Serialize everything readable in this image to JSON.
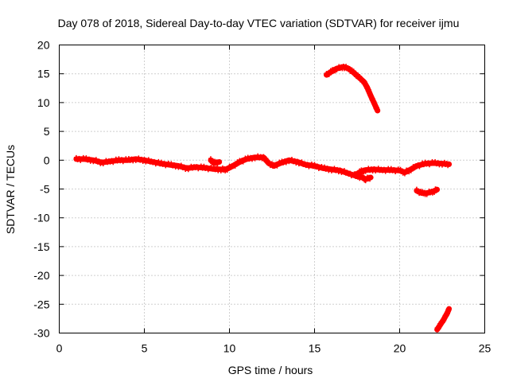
{
  "chart_data": {
    "type": "scatter",
    "title": "Day 078 of 2018, Sidereal Day-to-day VTEC variation (SDTVAR) for receiver ijmu",
    "xlabel": "GPS time / hours",
    "ylabel": "SDTVAR / TECUs",
    "xlim": [
      0,
      25
    ],
    "ylim": [
      -30,
      20
    ],
    "xticks": [
      0,
      5,
      10,
      15,
      20,
      25
    ],
    "yticks": [
      -30,
      -25,
      -20,
      -15,
      -10,
      -5,
      0,
      5,
      10,
      15,
      20
    ],
    "grid": true,
    "color": "#ff0000",
    "series": [
      {
        "name": "main",
        "points": [
          [
            1.0,
            0.2
          ],
          [
            1.5,
            0.2
          ],
          [
            2.0,
            0.0
          ],
          [
            2.5,
            -0.4
          ],
          [
            3.0,
            -0.2
          ],
          [
            3.5,
            0.0
          ],
          [
            4.0,
            0.0
          ],
          [
            4.5,
            0.2
          ],
          [
            5.0,
            0.0
          ],
          [
            5.5,
            -0.3
          ],
          [
            6.0,
            -0.6
          ],
          [
            6.5,
            -0.8
          ],
          [
            7.0,
            -1.0
          ],
          [
            7.5,
            -1.4
          ],
          [
            8.0,
            -1.2
          ],
          [
            8.5,
            -1.3
          ],
          [
            9.0,
            -1.5
          ],
          [
            9.5,
            -1.6
          ],
          [
            9.8,
            -1.6
          ],
          [
            10.2,
            -1.0
          ],
          [
            10.6,
            -0.3
          ],
          [
            11.0,
            0.2
          ],
          [
            11.5,
            0.5
          ],
          [
            12.0,
            0.5
          ],
          [
            12.3,
            -0.5
          ],
          [
            12.6,
            -1.0
          ],
          [
            13.0,
            -0.5
          ],
          [
            13.5,
            0.0
          ],
          [
            14.0,
            -0.3
          ],
          [
            14.5,
            -0.8
          ],
          [
            15.0,
            -1.0
          ],
          [
            15.5,
            -1.4
          ],
          [
            16.0,
            -1.6
          ],
          [
            16.5,
            -1.8
          ],
          [
            17.0,
            -2.3
          ],
          [
            17.5,
            -2.8
          ],
          [
            17.8,
            -3.0
          ],
          [
            18.0,
            -3.3
          ],
          [
            18.3,
            -3.0
          ]
        ]
      },
      {
        "name": "segment-9h",
        "points": [
          [
            8.9,
            0.0
          ],
          [
            9.1,
            -0.5
          ],
          [
            9.4,
            -0.3
          ]
        ]
      },
      {
        "name": "segment-17-23h",
        "points": [
          [
            17.4,
            -2.6
          ],
          [
            17.7,
            -2.0
          ],
          [
            18.0,
            -1.7
          ],
          [
            18.5,
            -1.6
          ],
          [
            19.0,
            -1.7
          ],
          [
            19.5,
            -1.7
          ],
          [
            20.0,
            -1.8
          ],
          [
            20.3,
            -2.1
          ],
          [
            20.6,
            -1.7
          ],
          [
            21.0,
            -1.0
          ],
          [
            21.5,
            -0.6
          ],
          [
            22.0,
            -0.5
          ],
          [
            22.5,
            -0.6
          ],
          [
            22.9,
            -0.7
          ]
        ]
      },
      {
        "name": "upper-arc",
        "points": [
          [
            15.7,
            14.8
          ],
          [
            16.0,
            15.4
          ],
          [
            16.3,
            15.9
          ],
          [
            16.7,
            16.2
          ],
          [
            17.0,
            15.9
          ],
          [
            17.3,
            15.2
          ],
          [
            17.6,
            14.4
          ],
          [
            17.9,
            13.6
          ],
          [
            18.1,
            12.6
          ],
          [
            18.3,
            11.2
          ],
          [
            18.5,
            9.9
          ],
          [
            18.7,
            8.6
          ]
        ]
      },
      {
        "name": "segment-21-22h",
        "points": [
          [
            21.0,
            -5.3
          ],
          [
            21.3,
            -5.7
          ],
          [
            21.6,
            -5.7
          ],
          [
            22.0,
            -5.4
          ],
          [
            22.2,
            -5.1
          ]
        ]
      },
      {
        "name": "lower-segment",
        "points": [
          [
            22.2,
            -29.4
          ],
          [
            22.4,
            -28.5
          ],
          [
            22.6,
            -27.6
          ],
          [
            22.8,
            -26.5
          ],
          [
            22.9,
            -25.8
          ]
        ]
      }
    ]
  }
}
